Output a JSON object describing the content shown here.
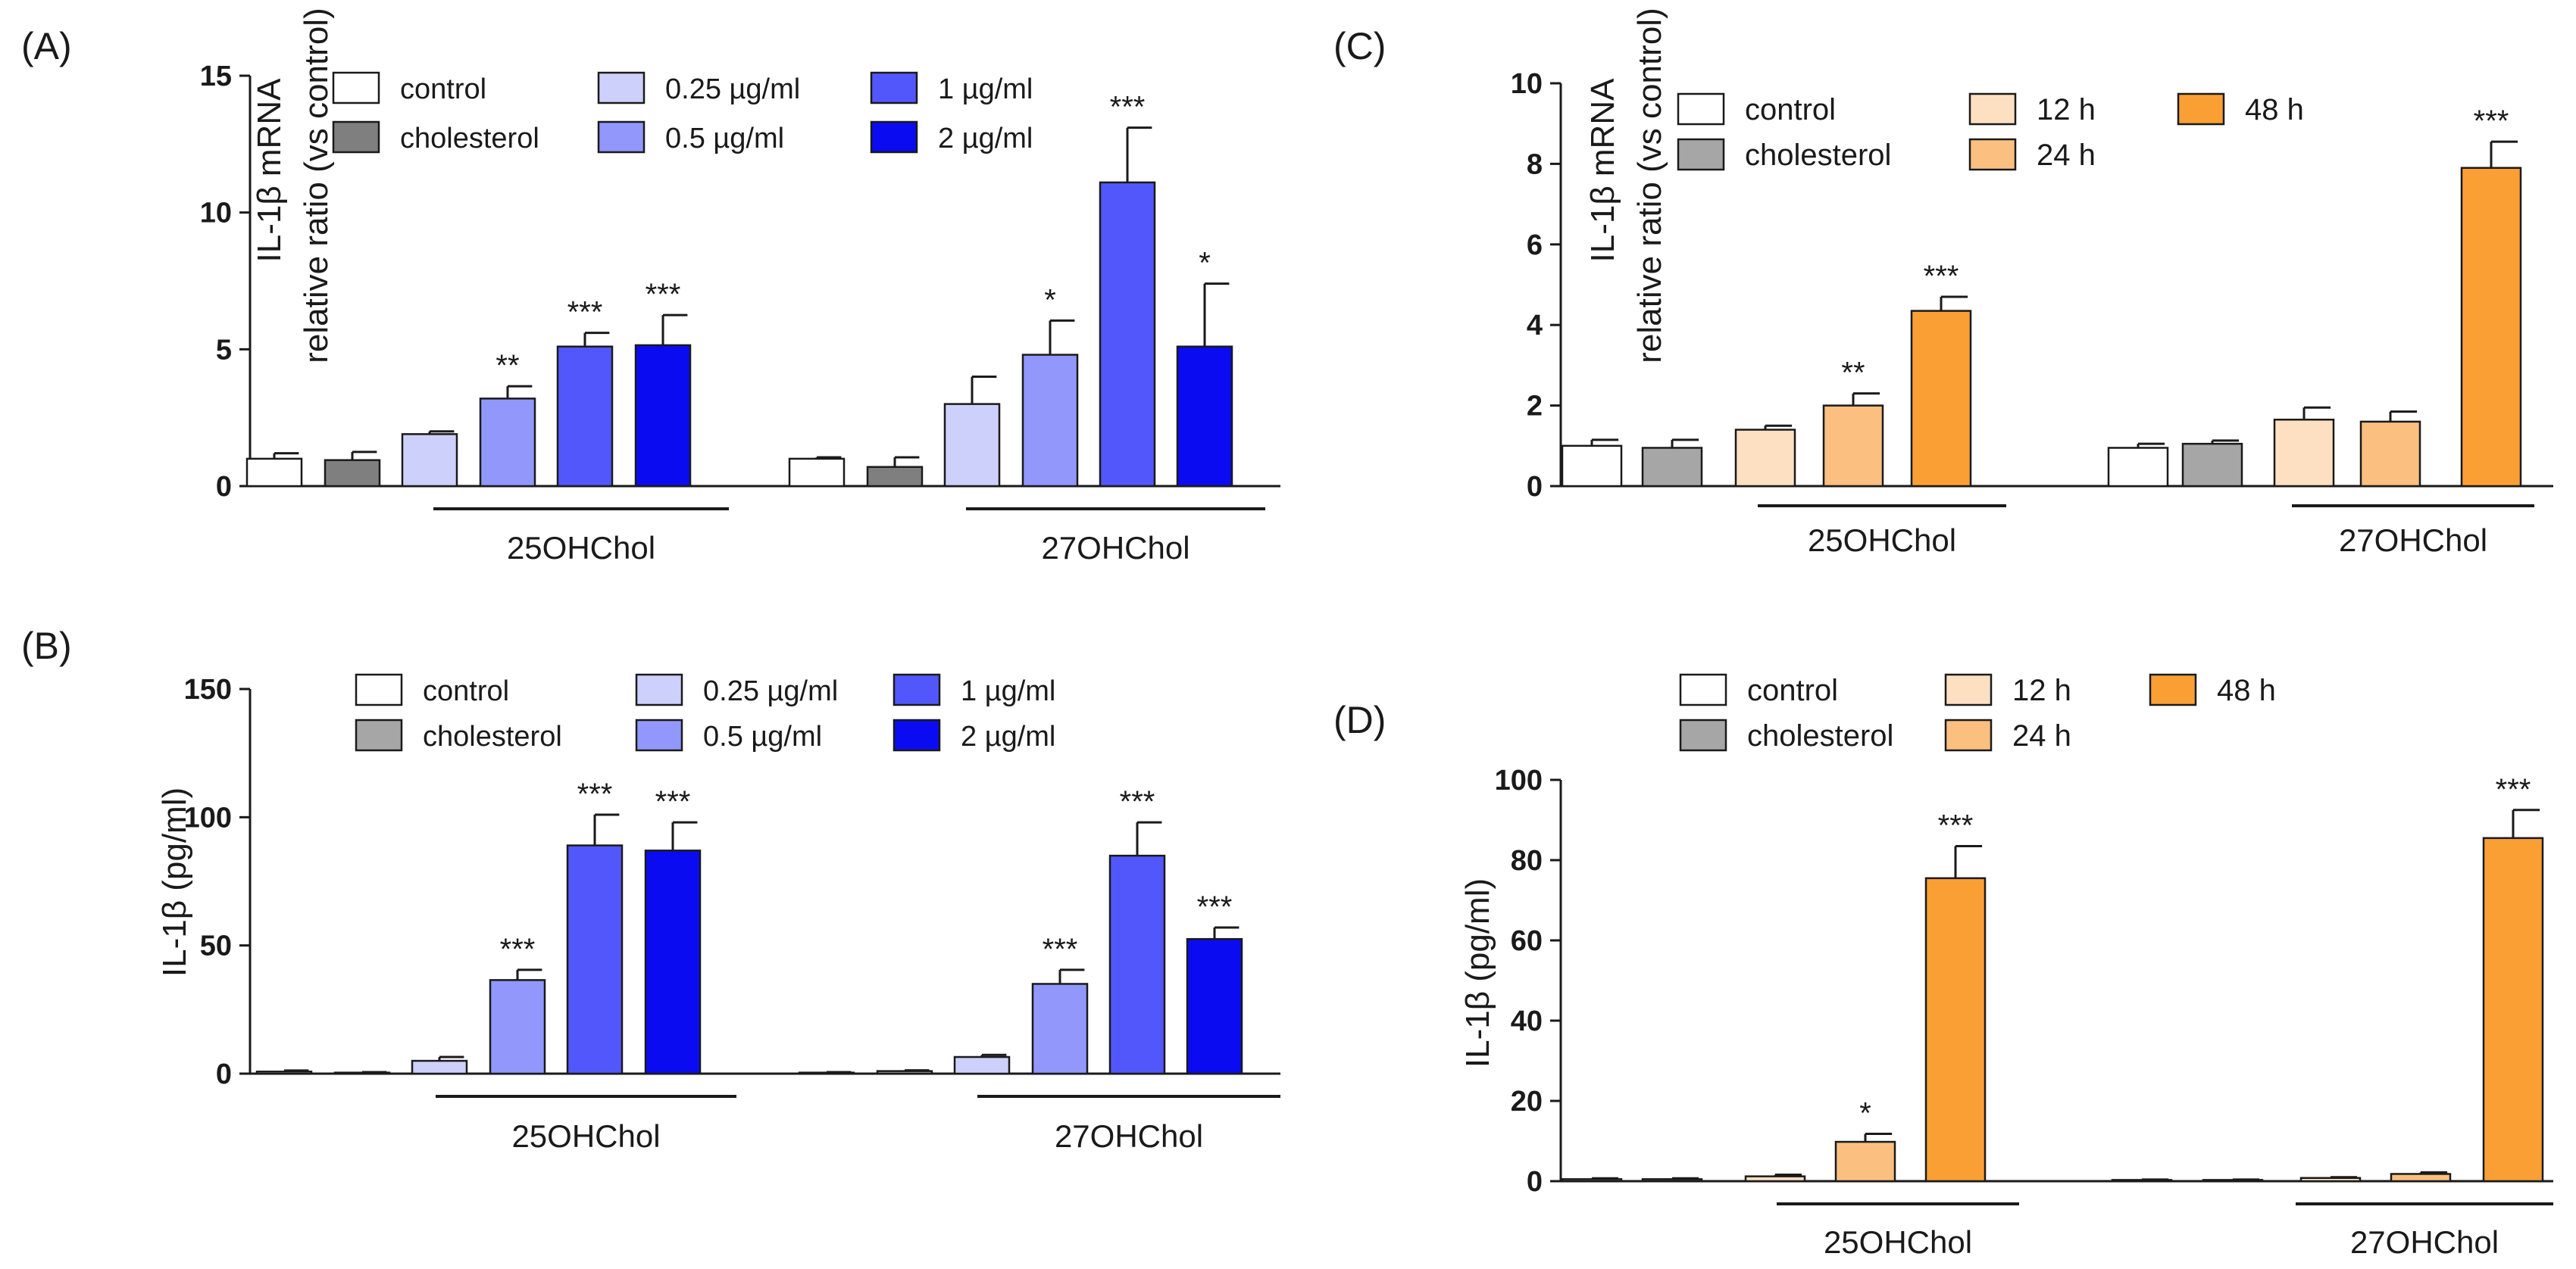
{
  "figure": {
    "background": "#ffffff",
    "text_color": "#1a1a1a"
  },
  "chart_data": [
    {
      "panel": "(A)",
      "type": "bar",
      "ylabel": "IL-1β mRNA",
      "ylabel2": "relative ratio (vs control)",
      "ylim": [
        0,
        15
      ],
      "yticks": [
        0,
        5,
        10,
        15
      ],
      "legend": [
        {
          "label": "control",
          "color": "#ffffff"
        },
        {
          "label": "cholesterol",
          "color": "#7f7f7f"
        },
        {
          "label": "0.25 µg/ml",
          "color": "#cdd0fb"
        },
        {
          "label": "0.5  µg/ml",
          "color": "#9197fb"
        },
        {
          "label": "1  µg/ml",
          "color": "#5257fc"
        },
        {
          "label": "2  µg/ml",
          "color": "#0b0bf2"
        }
      ],
      "groups": [
        "25OHChol",
        "27OHChol"
      ],
      "bars": [
        {
          "series": "control",
          "value": 1.0,
          "error": 0.2,
          "sig": ""
        },
        {
          "series": "cholesterol",
          "value": 0.95,
          "error": 0.3,
          "sig": ""
        },
        {
          "series": "0.25 µg/ml",
          "value": 1.9,
          "error": 0.1,
          "sig": ""
        },
        {
          "series": "0.5  µg/ml",
          "value": 3.2,
          "error": 0.45,
          "sig": "**"
        },
        {
          "series": "1  µg/ml",
          "value": 5.1,
          "error": 0.5,
          "sig": "***"
        },
        {
          "series": "2  µg/ml",
          "value": 5.15,
          "error": 1.1,
          "sig": "***"
        },
        {
          "series": "control",
          "value": 1.0,
          "error": 0.05,
          "sig": ""
        },
        {
          "series": "cholesterol",
          "value": 0.7,
          "error": 0.35,
          "sig": ""
        },
        {
          "series": "0.25 µg/ml",
          "value": 3.0,
          "error": 1.0,
          "sig": ""
        },
        {
          "series": "0.5  µg/ml",
          "value": 4.8,
          "error": 1.25,
          "sig": "*"
        },
        {
          "series": "1  µg/ml",
          "value": 11.1,
          "error": 2.0,
          "sig": "***"
        },
        {
          "series": "2  µg/ml",
          "value": 5.1,
          "error": 2.3,
          "sig": "*"
        }
      ]
    },
    {
      "panel": "(B)",
      "type": "bar",
      "ylabel": "IL-1β (pg/ml)",
      "ylim": [
        0,
        150
      ],
      "yticks": [
        0,
        50,
        100,
        150
      ],
      "legend": [
        {
          "label": "control",
          "color": "#ffffff"
        },
        {
          "label": "cholesterol",
          "color": "#a6a6a6"
        },
        {
          "label": "0.25 µg/ml",
          "color": "#cdd0fb"
        },
        {
          "label": "0.5  µg/ml",
          "color": "#9197fb"
        },
        {
          "label": "1  µg/ml",
          "color": "#5257fc"
        },
        {
          "label": "2  µg/ml",
          "color": "#0b0bf2"
        }
      ],
      "groups": [
        "25OHChol",
        "27OHChol"
      ],
      "bars": [
        {
          "series": "control",
          "value": 0.8,
          "error": 0.4,
          "sig": ""
        },
        {
          "series": "cholesterol",
          "value": 0.4,
          "error": 0.2,
          "sig": ""
        },
        {
          "series": "0.25 µg/ml",
          "value": 5.0,
          "error": 1.5,
          "sig": ""
        },
        {
          "series": "0.5  µg/ml",
          "value": 36.5,
          "error": 4.0,
          "sig": "***"
        },
        {
          "series": "1  µg/ml",
          "value": 89.0,
          "error": 12.0,
          "sig": "***"
        },
        {
          "series": "2  µg/ml",
          "value": 87.0,
          "error": 11.0,
          "sig": "***"
        },
        {
          "series": "control",
          "value": 0.4,
          "error": 0.2,
          "sig": ""
        },
        {
          "series": "cholesterol",
          "value": 1.0,
          "error": 0.3,
          "sig": ""
        },
        {
          "series": "0.25 µg/ml",
          "value": 6.5,
          "error": 0.8,
          "sig": ""
        },
        {
          "series": "0.5  µg/ml",
          "value": 35.0,
          "error": 5.5,
          "sig": "***"
        },
        {
          "series": "1  µg/ml",
          "value": 85.0,
          "error": 13.0,
          "sig": "***"
        },
        {
          "series": "2  µg/ml",
          "value": 52.5,
          "error": 4.5,
          "sig": "***"
        }
      ]
    },
    {
      "panel": "(C)",
      "type": "bar",
      "ylabel": "IL-1β mRNA",
      "ylabel2": "relative ratio (vs control)",
      "ylim": [
        0,
        10
      ],
      "yticks": [
        0,
        2,
        4,
        6,
        8,
        10
      ],
      "legend": [
        {
          "label": "control",
          "color": "#ffffff"
        },
        {
          "label": "cholesterol",
          "color": "#a6a6a6"
        },
        {
          "label": "12 h",
          "color": "#fde0c2"
        },
        {
          "label": "24 h",
          "color": "#fbbf80"
        },
        {
          "label": "48 h",
          "color": "#fa9f34"
        }
      ],
      "groups": [
        "25OHChol",
        "27OHChol"
      ],
      "bars": [
        {
          "series": "control",
          "value": 1.0,
          "error": 0.15,
          "sig": ""
        },
        {
          "series": "cholesterol",
          "value": 0.95,
          "error": 0.2,
          "sig": ""
        },
        {
          "series": "12 h",
          "value": 1.4,
          "error": 0.1,
          "sig": ""
        },
        {
          "series": "24 h",
          "value": 2.0,
          "error": 0.3,
          "sig": "**"
        },
        {
          "series": "48 h",
          "value": 4.35,
          "error": 0.35,
          "sig": "***"
        },
        {
          "series": "control",
          "value": 0.95,
          "error": 0.1,
          "sig": ""
        },
        {
          "series": "cholesterol",
          "value": 1.05,
          "error": 0.08,
          "sig": ""
        },
        {
          "series": "12 h",
          "value": 1.65,
          "error": 0.3,
          "sig": ""
        },
        {
          "series": "24 h",
          "value": 1.6,
          "error": 0.25,
          "sig": ""
        },
        {
          "series": "48 h",
          "value": 7.9,
          "error": 0.65,
          "sig": "***"
        }
      ]
    },
    {
      "panel": "(D)",
      "type": "bar",
      "ylabel": "IL-1β (pg/ml)",
      "ylim": [
        0,
        100
      ],
      "yticks": [
        0,
        20,
        40,
        60,
        80,
        100
      ],
      "legend": [
        {
          "label": "control",
          "color": "#ffffff"
        },
        {
          "label": "cholesterol",
          "color": "#a6a6a6"
        },
        {
          "label": "12 h",
          "color": "#fde0c2"
        },
        {
          "label": "24 h",
          "color": "#fbbf80"
        },
        {
          "label": "48 h",
          "color": "#fa9f34"
        }
      ],
      "groups": [
        "25OHChol",
        "27OHChol"
      ],
      "bars": [
        {
          "series": "control",
          "value": 0.5,
          "error": 0.2,
          "sig": ""
        },
        {
          "series": "cholesterol",
          "value": 0.5,
          "error": 0.2,
          "sig": ""
        },
        {
          "series": "12 h",
          "value": 1.2,
          "error": 0.4,
          "sig": ""
        },
        {
          "series": "24 h",
          "value": 9.8,
          "error": 2.0,
          "sig": "*"
        },
        {
          "series": "48 h",
          "value": 75.5,
          "error": 8.0,
          "sig": "***"
        },
        {
          "series": "control",
          "value": 0.3,
          "error": 0.1,
          "sig": ""
        },
        {
          "series": "cholesterol",
          "value": 0.3,
          "error": 0.1,
          "sig": ""
        },
        {
          "series": "12 h",
          "value": 0.8,
          "error": 0.2,
          "sig": ""
        },
        {
          "series": "24 h",
          "value": 1.8,
          "error": 0.4,
          "sig": ""
        },
        {
          "series": "48 h",
          "value": 85.5,
          "error": 7.0,
          "sig": "***"
        }
      ]
    }
  ]
}
